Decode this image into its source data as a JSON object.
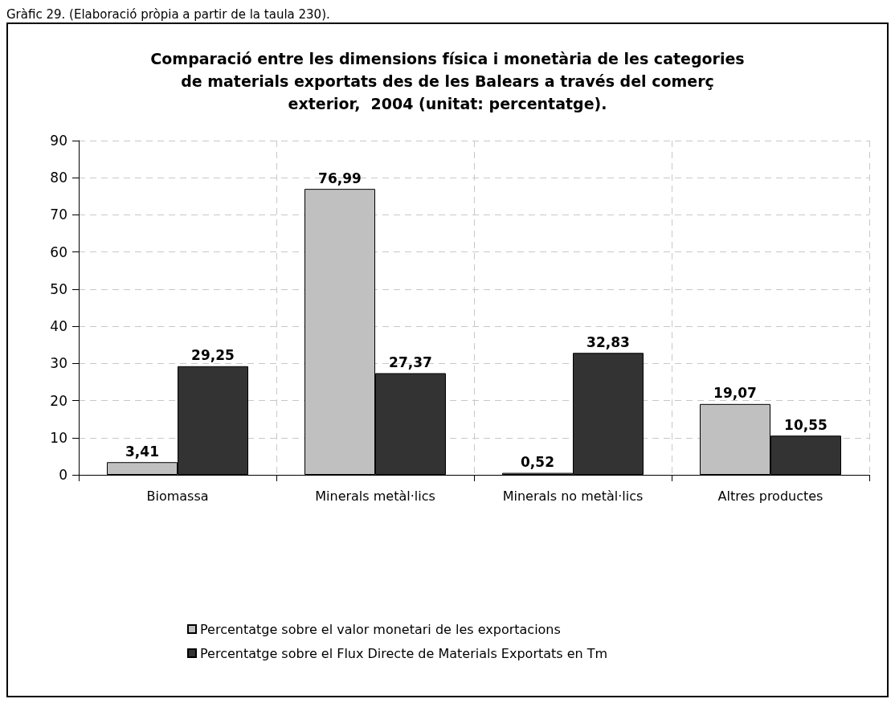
{
  "chart_data": {
    "type": "bar",
    "title": "Comparació entre les dimensions física i monetària de les categories\nde materials exportats des de les Balears a través del comerç\nexterior,  2004 (unitat: percentatge).",
    "annotations": [
      "Gràfic 29. (Elaboració pròpia a partir de la taula 230)."
    ],
    "categories": [
      "Biomassa",
      "Minerals metàl·lics",
      "Minerals no metàl·lics",
      "Altres productes"
    ],
    "series": [
      {
        "name": "Percentatge sobre el valor monetari de les exportacions",
        "color": "#c0c0c0",
        "values": [
          3.41,
          76.99,
          0.52,
          19.07
        ],
        "value_labels": [
          "3,41",
          "76,99",
          "0,52",
          "19,07"
        ]
      },
      {
        "name": "Percentatge sobre el Flux Directe de Materials Exportats en Tm",
        "color": "#333333",
        "values": [
          29.25,
          27.37,
          32.83,
          10.55
        ],
        "value_labels": [
          "29,25",
          "27,37",
          "32,83",
          "10,55"
        ]
      }
    ],
    "ylim": [
      0,
      90
    ],
    "yticks": [
      0,
      10,
      20,
      30,
      40,
      50,
      60,
      70,
      80,
      90
    ],
    "grid": true,
    "legend": "bottom"
  }
}
